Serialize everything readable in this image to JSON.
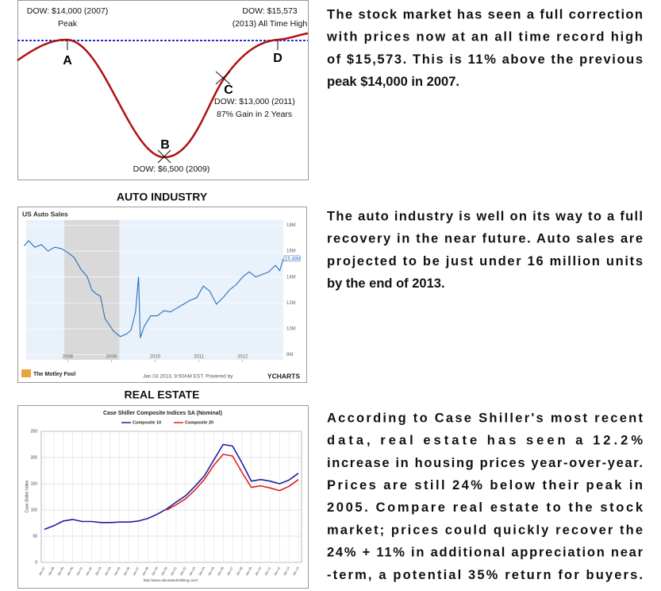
{
  "stock_diagram": {
    "peak_label": "DOW: $14,000 (2007)",
    "peak_note": "Peak",
    "high_label": "DOW: $15,573",
    "high_note": "(2013) All Time High",
    "point_a": "A",
    "point_b": "B",
    "point_c": "C",
    "point_d": "D",
    "c_label": "DOW: $13,000 (2011)",
    "c_note": "87% Gain in 2 Years",
    "b_label": "DOW: $6,500 (2009)"
  },
  "headings": [
    "AUTO INDUSTRY",
    "REAL ESTATE"
  ],
  "paragraphs": [
    [
      "The stock market has seen a full correction",
      "with prices now at an all time record high",
      "of $15,573. This is 11% above the previous",
      "peak $14,000 in 2007."
    ],
    [
      "The auto industry is well on its way to a full",
      "recovery in the near future. Auto sales are",
      "projected to be just under 16 million units",
      "by the end of 2013."
    ],
    [
      "According to Case Shiller's most recent",
      "data, real estate has seen a 12.2%",
      "increase in housing prices year-over-year.",
      "Prices are still 24% below their peak in",
      "2005. Compare real estate to the stock",
      "market; prices could quickly recover the",
      "24% + 11% in additional appreciation near",
      "-term, a potential 35% return for buyers."
    ]
  ],
  "chart_data": [
    {
      "type": "line",
      "title": "US Auto Sales",
      "color": "#2a6fba",
      "x": [
        2007.0,
        2007.1,
        2007.25,
        2007.4,
        2007.55,
        2007.7,
        2007.85,
        2008.0,
        2008.15,
        2008.3,
        2008.45,
        2008.55,
        2008.65,
        2008.75,
        2008.85,
        2008.95,
        2009.05,
        2009.2,
        2009.35,
        2009.45,
        2009.55,
        2009.62,
        2009.66,
        2009.75,
        2009.9,
        2010.05,
        2010.2,
        2010.35,
        2010.5,
        2010.65,
        2010.8,
        2010.95,
        2011.1,
        2011.25,
        2011.4,
        2011.55,
        2011.7,
        2011.85,
        2012.0,
        2012.15,
        2012.3,
        2012.45,
        2012.6,
        2012.75,
        2012.85,
        2012.93
      ],
      "values": [
        16.4,
        16.8,
        16.3,
        16.5,
        16.0,
        16.3,
        16.2,
        15.9,
        15.5,
        14.6,
        14.0,
        13.0,
        12.7,
        12.5,
        10.8,
        10.3,
        9.8,
        9.4,
        9.6,
        9.9,
        11.3,
        14.0,
        9.3,
        10.2,
        11.0,
        11.0,
        11.4,
        11.3,
        11.6,
        11.9,
        12.2,
        12.4,
        13.3,
        12.9,
        11.9,
        12.4,
        13.0,
        13.4,
        14.0,
        14.4,
        14.0,
        14.2,
        14.4,
        14.9,
        14.5,
        15.4
      ],
      "last_value_label": "15.48M",
      "shaded_range": [
        2007.92,
        2009.18
      ],
      "xlim": [
        2007.05,
        2012.93
      ],
      "xticks": [
        2008,
        2009,
        2010,
        2011,
        2012
      ],
      "ylim": [
        7.6,
        18.4
      ],
      "yticks": [
        {
          "value": 8,
          "label": "8M"
        },
        {
          "value": 10,
          "label": "10M"
        },
        {
          "value": 12,
          "label": "12M"
        },
        {
          "value": 14,
          "label": "14M"
        },
        {
          "value": 16,
          "label": "16M"
        },
        {
          "value": 18,
          "label": "18M"
        }
      ],
      "footer_logo": "The Motley Fool",
      "footer_text": "Jan 03 2013, 9:50AM EST. Powered by",
      "footer_brand": "YCHARTS"
    },
    {
      "type": "line",
      "title": "Case Shiller Composite Indices SA (Nominal)",
      "ylabel": "Case-Shiller Index",
      "categories": [
        "Jan-87",
        "Jan-88",
        "Jan-89",
        "Jan-90",
        "Jan-91",
        "Jan-92",
        "Jan-93",
        "Jan-94",
        "Jan-95",
        "Jan-96",
        "Jan-97",
        "Jan-98",
        "Jan-99",
        "Jan-00",
        "Jan-01",
        "Jan-02",
        "Jan-03",
        "Jan-04",
        "Jan-05",
        "Jan-06",
        "Jan-07",
        "Jan-08",
        "Jan-09",
        "Jan-10",
        "Jan-11",
        "Jan-12",
        "Jan-13",
        "Jan-14"
      ],
      "series": [
        {
          "name": "Composite 10",
          "color": "#1f1f9e",
          "values": [
            63,
            70,
            79,
            82,
            78,
            78,
            76,
            76,
            77,
            77,
            79,
            84,
            92,
            102,
            115,
            127,
            145,
            165,
            195,
            225,
            222,
            190,
            155,
            158,
            155,
            150,
            157,
            170
          ]
        },
        {
          "name": "Composite 20",
          "color": "#e02020",
          "values": [
            null,
            null,
            null,
            null,
            null,
            null,
            null,
            null,
            null,
            null,
            null,
            null,
            null,
            100,
            110,
            121,
            138,
            158,
            185,
            206,
            203,
            172,
            143,
            146,
            142,
            137,
            145,
            158
          ]
        }
      ],
      "ylim": [
        0,
        250
      ],
      "yticks": [
        0,
        50,
        100,
        150,
        200,
        250
      ],
      "grid": true,
      "source": "http://www.calculatedriskblog.com/"
    }
  ]
}
